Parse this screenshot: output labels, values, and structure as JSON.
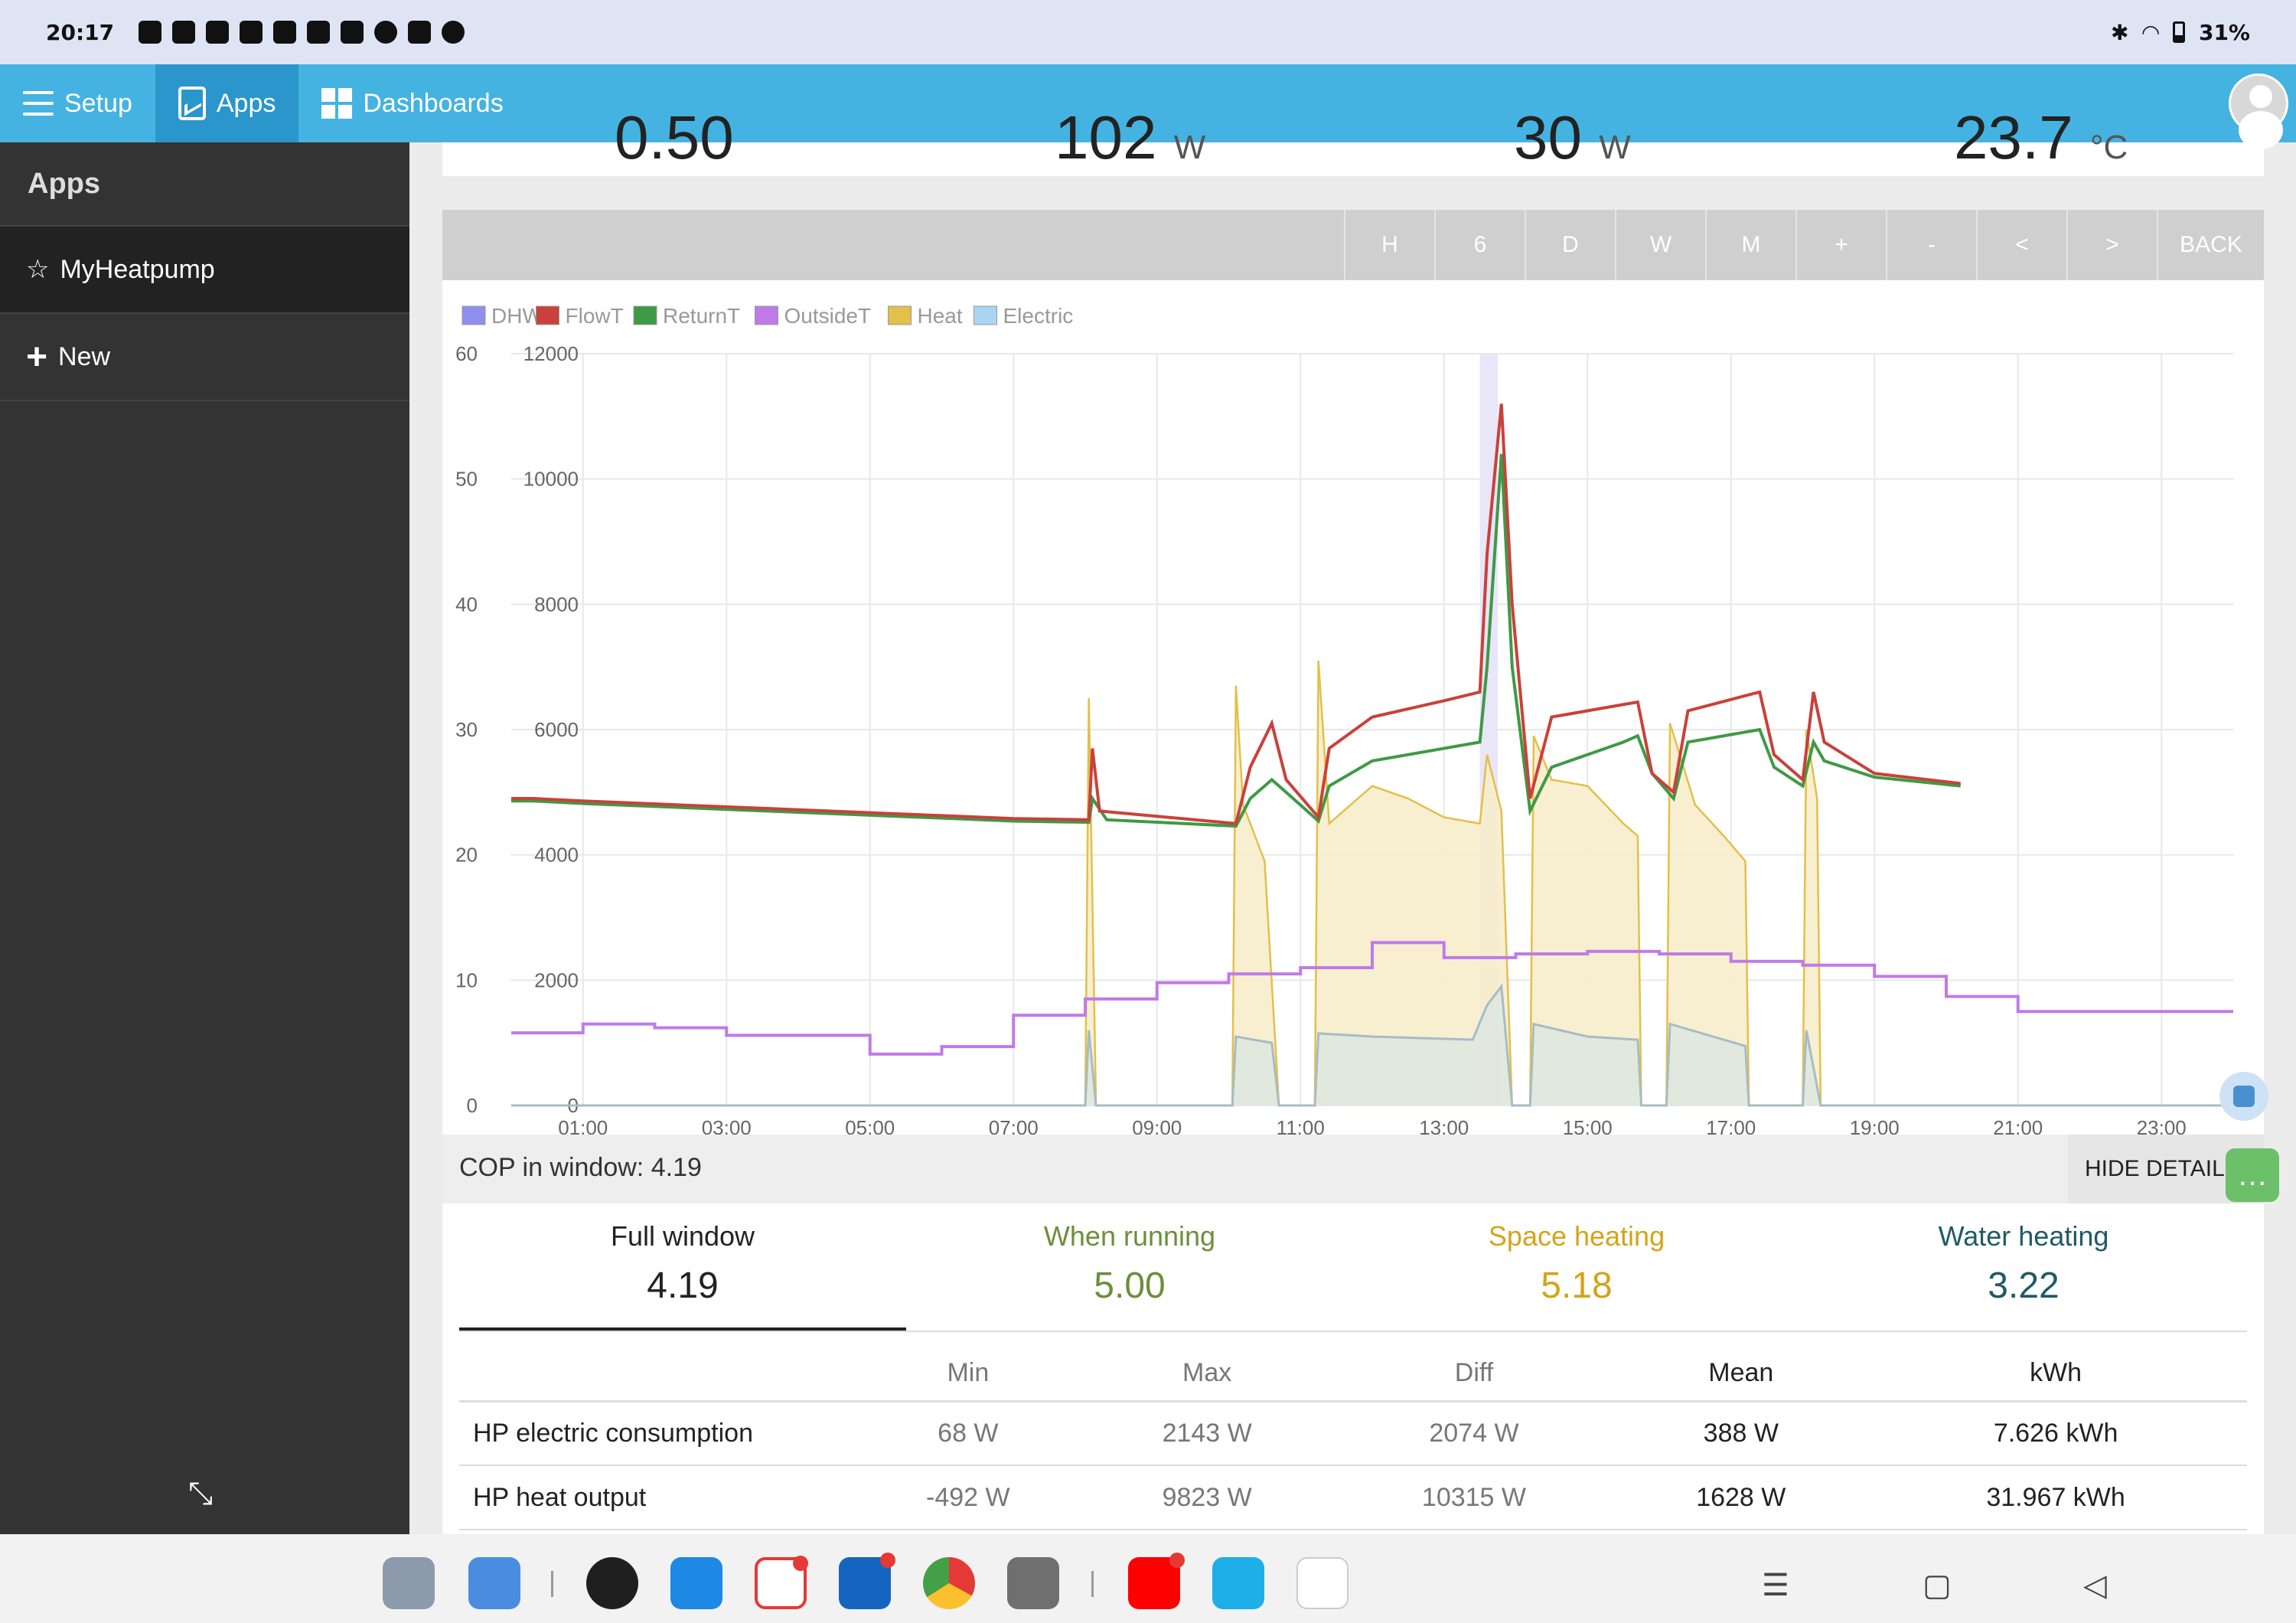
{
  "statusbar": {
    "time": "20:17",
    "battery": "31%"
  },
  "topnav": {
    "setup": "Setup",
    "apps": "Apps",
    "dashboards": "Dashboards"
  },
  "sidebar": {
    "title": "Apps",
    "items": [
      {
        "icon": "☆",
        "label": "MyHeatpump"
      },
      {
        "icon": "+",
        "label": "New"
      }
    ]
  },
  "stats_partial": {
    "s1": "0.50",
    "s2_value": "102",
    "s2_unit": "W",
    "s3_value": "30",
    "s3_unit": "W",
    "s4_value": "23.7",
    "s4_unit": "°C"
  },
  "toolbar": {
    "buttons": [
      "H",
      "6",
      "D",
      "W",
      "M",
      "+",
      "-",
      "<",
      ">",
      "BACK"
    ]
  },
  "chart_data": {
    "type": "line",
    "legend": [
      "DHW",
      "FlowT",
      "ReturnT",
      "OutsideT",
      "Heat",
      "Electric"
    ],
    "legend_colors": [
      "#8f8ff0",
      "#c9413b",
      "#3e9a45",
      "#c07ae8",
      "#e2c049",
      "#a9d5f3"
    ],
    "x_ticks": [
      "01:00",
      "03:00",
      "05:00",
      "07:00",
      "09:00",
      "11:00",
      "13:00",
      "15:00",
      "17:00",
      "19:00",
      "21:00",
      "23:00"
    ],
    "y_left_ticks": [
      0,
      10,
      20,
      30,
      40,
      50,
      60
    ],
    "y_right_ticks": [
      0,
      2000,
      4000,
      6000,
      8000,
      10000,
      12000
    ],
    "y_left_range": [
      0,
      60
    ],
    "y_right_range": [
      0,
      12000
    ],
    "x_range_hours": [
      0,
      24
    ],
    "series": [
      {
        "name": "FlowT",
        "points": [
          [
            0,
            24.5
          ],
          [
            0.3,
            24.5
          ],
          [
            1.0,
            24.3
          ],
          [
            4,
            23.6
          ],
          [
            7,
            22.9
          ],
          [
            8.05,
            22.8
          ],
          [
            8.1,
            28.5
          ],
          [
            8.2,
            23.5
          ],
          [
            10.1,
            22.5
          ],
          [
            10.3,
            27
          ],
          [
            10.6,
            30.5
          ],
          [
            10.8,
            26
          ],
          [
            11.25,
            23.0
          ],
          [
            11.4,
            28.5
          ],
          [
            12,
            31
          ],
          [
            13,
            32.3
          ],
          [
            13.5,
            33
          ],
          [
            13.6,
            44
          ],
          [
            13.8,
            56
          ],
          [
            13.95,
            40
          ],
          [
            14.2,
            24.5
          ],
          [
            14.5,
            31
          ],
          [
            15.5,
            32
          ],
          [
            15.7,
            32.2
          ],
          [
            15.9,
            26.5
          ],
          [
            16.2,
            25
          ],
          [
            16.4,
            31.5
          ],
          [
            17.4,
            33
          ],
          [
            17.6,
            28
          ],
          [
            18,
            26
          ],
          [
            18.15,
            33
          ],
          [
            18.3,
            29
          ],
          [
            19,
            26.5
          ],
          [
            20.2,
            25.7
          ]
        ]
      },
      {
        "name": "ReturnT",
        "points": [
          [
            0,
            24.3
          ],
          [
            0.3,
            24.3
          ],
          [
            1.0,
            24.1
          ],
          [
            4,
            23.4
          ],
          [
            7,
            22.7
          ],
          [
            8.05,
            22.6
          ],
          [
            8.1,
            24.5
          ],
          [
            8.3,
            22.8
          ],
          [
            10.1,
            22.3
          ],
          [
            10.3,
            24.5
          ],
          [
            10.6,
            26
          ],
          [
            10.8,
            25
          ],
          [
            11.25,
            22.7
          ],
          [
            11.4,
            25.5
          ],
          [
            12,
            27.5
          ],
          [
            13,
            28.5
          ],
          [
            13.5,
            29
          ],
          [
            13.6,
            35
          ],
          [
            13.8,
            52
          ],
          [
            13.95,
            35
          ],
          [
            14.2,
            23.5
          ],
          [
            14.5,
            27
          ],
          [
            15.5,
            29
          ],
          [
            15.7,
            29.5
          ],
          [
            15.9,
            26.5
          ],
          [
            16.2,
            24.5
          ],
          [
            16.4,
            29
          ],
          [
            17.4,
            30
          ],
          [
            17.6,
            27
          ],
          [
            18,
            25.5
          ],
          [
            18.15,
            29
          ],
          [
            18.3,
            27.5
          ],
          [
            19,
            26.2
          ],
          [
            20.2,
            25.5
          ]
        ]
      },
      {
        "name": "OutsideT",
        "points": [
          [
            0,
            5.8
          ],
          [
            1,
            5.8
          ],
          [
            1,
            6.5
          ],
          [
            2,
            6.5
          ],
          [
            2,
            6.2
          ],
          [
            3,
            6.2
          ],
          [
            3,
            5.6
          ],
          [
            5,
            5.6
          ],
          [
            5,
            4.1
          ],
          [
            6,
            4.1
          ],
          [
            6,
            4.7
          ],
          [
            7,
            4.7
          ],
          [
            7,
            7.2
          ],
          [
            8,
            7.2
          ],
          [
            8,
            8.5
          ],
          [
            9,
            8.5
          ],
          [
            9,
            9.8
          ],
          [
            10,
            9.8
          ],
          [
            10,
            10.5
          ],
          [
            11,
            10.5
          ],
          [
            11,
            11.0
          ],
          [
            12,
            11.0
          ],
          [
            12,
            13.0
          ],
          [
            13,
            13.0
          ],
          [
            13,
            11.8
          ],
          [
            14,
            11.8
          ],
          [
            14,
            12.1
          ],
          [
            15,
            12.1
          ],
          [
            15,
            12.3
          ],
          [
            16,
            12.3
          ],
          [
            16,
            12.1
          ],
          [
            17,
            12.1
          ],
          [
            17,
            11.5
          ],
          [
            18,
            11.5
          ],
          [
            18,
            11.2
          ],
          [
            19,
            11.2
          ],
          [
            19,
            10.3
          ],
          [
            20,
            10.3
          ],
          [
            20,
            8.7
          ],
          [
            21,
            8.7
          ],
          [
            21,
            7.5
          ],
          [
            24,
            7.5
          ]
        ]
      },
      {
        "name": "Heat",
        "points": [
          [
            0,
            0
          ],
          [
            8.0,
            0
          ],
          [
            8.05,
            6500
          ],
          [
            8.15,
            0
          ],
          [
            10.05,
            0
          ],
          [
            10.1,
            6700
          ],
          [
            10.2,
            4800
          ],
          [
            10.5,
            3900
          ],
          [
            10.7,
            0
          ],
          [
            11.2,
            0
          ],
          [
            11.25,
            7100
          ],
          [
            11.4,
            4500
          ],
          [
            12,
            5100
          ],
          [
            12.5,
            4900
          ],
          [
            13,
            4600
          ],
          [
            13.5,
            4500
          ],
          [
            13.6,
            5600
          ],
          [
            13.8,
            4700
          ],
          [
            13.95,
            0
          ],
          [
            14.2,
            0
          ],
          [
            14.25,
            5900
          ],
          [
            14.5,
            5200
          ],
          [
            15.0,
            5100
          ],
          [
            15.5,
            4500
          ],
          [
            15.7,
            4300
          ],
          [
            15.75,
            0
          ],
          [
            16.1,
            0
          ],
          [
            16.15,
            6100
          ],
          [
            16.5,
            4800
          ],
          [
            16.9,
            4300
          ],
          [
            17.2,
            3900
          ],
          [
            17.25,
            0
          ],
          [
            18.0,
            0
          ],
          [
            18.05,
            6000
          ],
          [
            18.2,
            4900
          ],
          [
            18.25,
            0
          ],
          [
            24,
            0
          ]
        ]
      },
      {
        "name": "Electric",
        "points": [
          [
            0,
            0
          ],
          [
            8.0,
            0
          ],
          [
            8.05,
            1200
          ],
          [
            8.15,
            0
          ],
          [
            10.05,
            0
          ],
          [
            10.1,
            1100
          ],
          [
            10.6,
            1000
          ],
          [
            10.7,
            0
          ],
          [
            11.2,
            0
          ],
          [
            11.25,
            1150
          ],
          [
            12,
            1100
          ],
          [
            13.4,
            1050
          ],
          [
            13.6,
            1600
          ],
          [
            13.8,
            1900
          ],
          [
            13.95,
            0
          ],
          [
            14.2,
            0
          ],
          [
            14.25,
            1300
          ],
          [
            15.0,
            1100
          ],
          [
            15.7,
            1050
          ],
          [
            15.75,
            0
          ],
          [
            16.1,
            0
          ],
          [
            16.15,
            1300
          ],
          [
            17.2,
            950
          ],
          [
            17.25,
            0
          ],
          [
            18.0,
            0
          ],
          [
            18.05,
            1200
          ],
          [
            18.25,
            0
          ],
          [
            24,
            0
          ]
        ]
      }
    ]
  },
  "cop": {
    "label": "COP in window:",
    "value": "4.19",
    "hide_label": "HIDE DETAIL",
    "tabs": [
      {
        "label": "Full window",
        "value": "4.19"
      },
      {
        "label": "When running",
        "value": "5.00"
      },
      {
        "label": "Space heating",
        "value": "5.18"
      },
      {
        "label": "Water heating",
        "value": "3.22"
      }
    ]
  },
  "stats_table": {
    "headers": [
      "",
      "Min",
      "Max",
      "Diff",
      "Mean",
      "kWh"
    ],
    "rows": [
      [
        "HP electric consumption",
        "68 W",
        "2143 W",
        "2074 W",
        "388 W",
        "7.626 kWh"
      ],
      [
        "HP heat output",
        "-492 W",
        "9823 W",
        "10315 W",
        "1628 W",
        "31.967 kWh"
      ]
    ]
  },
  "taskbar": {
    "colors": [
      "#8d9aab",
      "#4a8de0",
      "#1f1f1f",
      "#1e88e5",
      "#ffffff",
      "#1565c0",
      "#ffffff",
      "#6f6f6f",
      "#ff0000",
      "#1eaee8",
      "#ffffff"
    ]
  }
}
